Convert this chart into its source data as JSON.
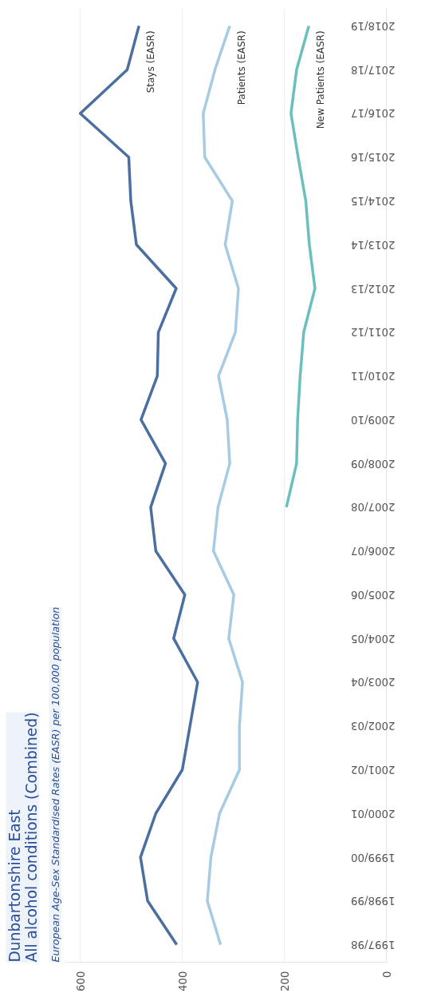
{
  "chart_data": {
    "type": "line",
    "title": "Dunbartonshire East\nAll alcohol conditions (Combined)",
    "subtitle": "European Age-Sex Standardised Rates (EASR) per 100,000 population",
    "categories": [
      "2018/19",
      "2017/18",
      "2016/17",
      "2015/16",
      "2014/15",
      "2013/14",
      "2012/13",
      "2011/12",
      "2010/11",
      "2009/10",
      "2008/09",
      "2007/08",
      "2006/07",
      "2005/06",
      "2004/05",
      "2003/04",
      "2002/03",
      "2001/02",
      "2000/01",
      "1999/00",
      "1998/99",
      "1997/98"
    ],
    "series": [
      {
        "name": "Stays (EASR)",
        "color": "#4a6fa0",
        "values": [
          485,
          508,
          600,
          505,
          501,
          490,
          412,
          447,
          449,
          481,
          433,
          462,
          452,
          395,
          417,
          370,
          385,
          400,
          452,
          482,
          468,
          411
        ]
      },
      {
        "name": "Patients (EASR)",
        "color": "#a8cbe4",
        "values": [
          307,
          336,
          359,
          356,
          302,
          316,
          290,
          296,
          329,
          312,
          307,
          330,
          339,
          299,
          309,
          282,
          288,
          288,
          327,
          344,
          351,
          325
        ]
      },
      {
        "name": "New Patients (EASR)",
        "color": "#6bbfbf",
        "values": [
          152,
          176,
          187,
          173,
          158,
          151,
          140,
          162,
          169,
          174,
          176,
          196,
          null,
          null,
          null,
          null,
          null,
          null,
          null,
          null,
          null,
          null
        ]
      }
    ],
    "orientation": "horizontal",
    "xlim": [
      630,
      0
    ],
    "xticks": [
      0,
      200,
      400,
      600
    ],
    "grid": "x",
    "legend": false,
    "marker": "none",
    "line_style": "solid"
  }
}
